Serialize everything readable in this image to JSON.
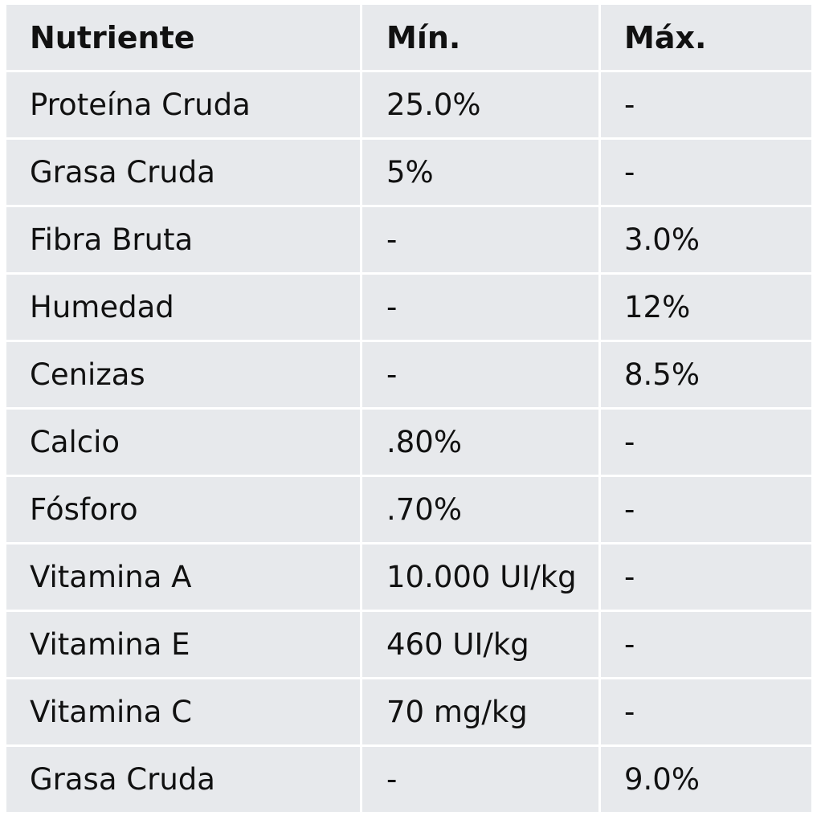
{
  "table": {
    "headers": [
      "Nutriente",
      "Mín.",
      "Máx."
    ],
    "rows": [
      [
        "Proteína Cruda",
        "25.0%",
        "-"
      ],
      [
        "Grasa Cruda",
        "5%",
        "-"
      ],
      [
        "Fibra Bruta",
        "-",
        "3.0%"
      ],
      [
        "Humedad",
        "-",
        "12%"
      ],
      [
        "Cenizas",
        "-",
        "8.5%"
      ],
      [
        "Calcio",
        ".80%",
        "-"
      ],
      [
        "Fósforo",
        ".70%",
        "-"
      ],
      [
        "Vitamina A",
        "10.000 UI/kg",
        "-"
      ],
      [
        "Vitamina E",
        "460 UI/kg",
        "-"
      ],
      [
        "Vitamina C",
        "70 mg/kg",
        "-"
      ],
      [
        "Grasa Cruda",
        "-",
        "9.0%"
      ]
    ]
  }
}
